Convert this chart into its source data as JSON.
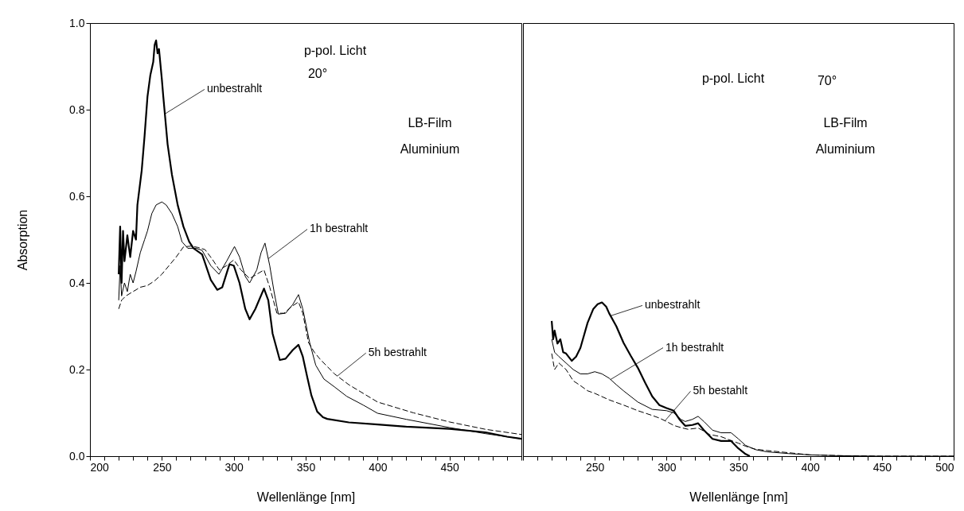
{
  "chart_data": [
    {
      "type": "line",
      "xlabel": "Wellenlänge [nm]",
      "ylabel": "Absorption",
      "xlim": [
        200,
        500
      ],
      "ylim": [
        0,
        1
      ],
      "xticks": [
        200,
        {
          "value": 210,
          "label": null
        },
        {
          "value": 220,
          "label": null
        },
        {
          "value": 230,
          "label": null
        },
        {
          "value": 240,
          "label": null
        },
        250,
        {
          "value": 260,
          "label": null
        },
        {
          "value": 270,
          "label": null
        },
        {
          "value": 280,
          "label": null
        },
        {
          "value": 290,
          "label": null
        },
        300,
        {
          "value": 310,
          "label": null
        },
        {
          "value": 320,
          "label": null
        },
        {
          "value": 330,
          "label": null
        },
        {
          "value": 340,
          "label": null
        },
        350,
        {
          "value": 360,
          "label": null
        },
        {
          "value": 370,
          "label": null
        },
        {
          "value": 380,
          "label": null
        },
        {
          "value": 390,
          "label": null
        },
        400,
        {
          "value": 410,
          "label": null
        },
        {
          "value": 420,
          "label": null
        },
        {
          "value": 430,
          "label": null
        },
        {
          "value": 440,
          "label": null
        },
        450,
        {
          "value": 460,
          "label": null
        },
        {
          "value": 470,
          "label": null
        },
        {
          "value": 480,
          "label": null
        },
        {
          "value": 490,
          "label": null
        },
        {
          "value": 500,
          "label": null
        }
      ],
      "yticks": [
        {
          "value": 0,
          "label": "0.0"
        },
        0.2,
        0.4,
        0.6,
        0.8,
        {
          "value": 1,
          "label": "1.0"
        }
      ],
      "grid": false,
      "legend": false,
      "marker": "none",
      "series": [
        {
          "color": "#000000",
          "line_style": "solid",
          "x": [
            220,
            221,
            222,
            223,
            224,
            226,
            228,
            230,
            232,
            233,
            236,
            238,
            240,
            242,
            244,
            245,
            246,
            247,
            248,
            250,
            251,
            254,
            257,
            261,
            265,
            269,
            272,
            278,
            284,
            288.5,
            292,
            297,
            300,
            304,
            308,
            311,
            315,
            321,
            324,
            327,
            332,
            336,
            341,
            345,
            348,
            351,
            354,
            358,
            362,
            365,
            380,
            400,
            420,
            450,
            475,
            490,
            500
          ],
          "values": [
            0.42,
            0.53,
            0.4,
            0.52,
            0.45,
            0.51,
            0.46,
            0.52,
            0.5,
            0.58,
            0.66,
            0.74,
            0.83,
            0.88,
            0.91,
            0.95,
            0.96,
            0.93,
            0.94,
            0.87,
            0.83,
            0.72,
            0.65,
            0.58,
            0.53,
            0.495,
            0.48,
            0.466,
            0.407,
            0.384,
            0.39,
            0.443,
            0.44,
            0.4,
            0.34,
            0.316,
            0.34,
            0.387,
            0.36,
            0.283,
            0.222,
            0.225,
            0.245,
            0.257,
            0.23,
            0.184,
            0.14,
            0.103,
            0.09,
            0.086,
            0.078,
            0.073,
            0.068,
            0.063,
            0.055,
            0.045,
            0.04
          ]
        },
        {
          "color": "#000000",
          "line_style": "solid",
          "x": [
            220,
            221,
            222,
            224,
            226,
            228,
            230,
            232,
            235,
            238,
            240,
            243,
            246,
            250,
            253,
            257,
            261,
            264,
            268,
            274,
            278,
            284,
            289.7,
            295,
            300.5,
            304,
            308,
            311,
            316,
            319,
            321.7,
            325,
            328,
            331,
            336,
            341,
            345,
            348,
            352.8,
            357,
            362.7,
            370,
            378.6,
            390,
            400,
            420,
            450,
            475,
            500
          ],
          "values": [
            0.36,
            0.44,
            0.37,
            0.4,
            0.38,
            0.42,
            0.4,
            0.426,
            0.47,
            0.5,
            0.52,
            0.56,
            0.58,
            0.587,
            0.58,
            0.56,
            0.53,
            0.495,
            0.48,
            0.48,
            0.475,
            0.44,
            0.42,
            0.45,
            0.484,
            0.46,
            0.415,
            0.4,
            0.43,
            0.47,
            0.492,
            0.44,
            0.38,
            0.328,
            0.33,
            0.35,
            0.373,
            0.34,
            0.262,
            0.21,
            0.178,
            0.16,
            0.138,
            0.118,
            0.099,
            0.085,
            0.066,
            0.052,
            0.04
          ]
        },
        {
          "color": "#000000",
          "line_style": "dashed",
          "x": [
            220,
            222,
            225,
            230,
            235,
            240,
            245,
            250,
            255,
            260,
            265,
            270,
            275,
            280,
            285,
            290,
            295,
            300,
            305,
            311,
            316,
            321,
            325,
            330,
            335,
            340,
            345,
            348,
            352,
            356,
            360,
            370,
            380,
            390,
            400,
            425,
            450,
            475,
            500
          ],
          "values": [
            0.34,
            0.36,
            0.37,
            0.38,
            0.39,
            0.394,
            0.405,
            0.42,
            0.44,
            0.46,
            0.483,
            0.485,
            0.482,
            0.477,
            0.455,
            0.43,
            0.44,
            0.453,
            0.43,
            0.41,
            0.42,
            0.43,
            0.39,
            0.33,
            0.33,
            0.345,
            0.356,
            0.33,
            0.262,
            0.24,
            0.224,
            0.19,
            0.165,
            0.145,
            0.125,
            0.1,
            0.079,
            0.062,
            0.05
          ]
        }
      ],
      "annotations": [
        {
          "text": "unbestrahlt",
          "x": 252,
          "y": 0.79
        },
        {
          "text": "1h bestrahlt",
          "x": 324,
          "y": 0.456
        },
        {
          "text": "5h bestrahlt",
          "x": 372,
          "y": 0.185
        },
        "p-pol. Licht",
        "20°",
        "LB-Film",
        "Aluminium"
      ]
    },
    {
      "type": "line",
      "xlabel": "Wellenlänge [nm]",
      "xlim": [
        200,
        500
      ],
      "ylim": [
        0,
        1
      ],
      "tick_labels": "x",
      "xticks": [
        {
          "value": 200,
          "label": null
        },
        {
          "value": 210,
          "label": null
        },
        {
          "value": 220,
          "label": null
        },
        {
          "value": 230,
          "label": null
        },
        {
          "value": 240,
          "label": null
        },
        250,
        {
          "value": 260,
          "label": null
        },
        {
          "value": 270,
          "label": null
        },
        {
          "value": 280,
          "label": null
        },
        {
          "value": 290,
          "label": null
        },
        300,
        {
          "value": 310,
          "label": null
        },
        {
          "value": 320,
          "label": null
        },
        {
          "value": 330,
          "label": null
        },
        {
          "value": 340,
          "label": null
        },
        350,
        {
          "value": 360,
          "label": null
        },
        {
          "value": 370,
          "label": null
        },
        {
          "value": 380,
          "label": null
        },
        {
          "value": 390,
          "label": null
        },
        400,
        {
          "value": 410,
          "label": null
        },
        {
          "value": 420,
          "label": null
        },
        {
          "value": 430,
          "label": null
        },
        {
          "value": 440,
          "label": null
        },
        450,
        {
          "value": 460,
          "label": null
        },
        {
          "value": 470,
          "label": null
        },
        {
          "value": 480,
          "label": null
        },
        {
          "value": 490,
          "label": null
        },
        500
      ],
      "grid": false,
      "legend": false,
      "marker": "none",
      "series": [
        {
          "color": "#000000",
          "line_style": "solid",
          "x": [
            220,
            221,
            222,
            224,
            226,
            228,
            230,
            234,
            237,
            240,
            245,
            249,
            252,
            255,
            258,
            260,
            265,
            270,
            275,
            280,
            285,
            290,
            295,
            300,
            305,
            309,
            313,
            318,
            322,
            326,
            332,
            338,
            345,
            350,
            355,
            358
          ],
          "values": [
            0.312,
            0.27,
            0.29,
            0.26,
            0.27,
            0.24,
            0.237,
            0.22,
            0.23,
            0.25,
            0.308,
            0.34,
            0.351,
            0.355,
            0.345,
            0.33,
            0.3,
            0.262,
            0.232,
            0.204,
            0.17,
            0.138,
            0.118,
            0.111,
            0.105,
            0.085,
            0.07,
            0.072,
            0.076,
            0.06,
            0.04,
            0.035,
            0.035,
            0.018,
            0.005,
            0.0
          ]
        },
        {
          "color": "#000000",
          "line_style": "solid",
          "x": [
            220,
            222,
            225,
            230,
            235,
            240,
            245,
            250,
            255,
            260,
            265,
            270,
            280,
            290,
            300,
            305,
            310,
            313,
            318,
            322,
            326,
            332,
            338,
            345,
            350,
            355,
            362,
            370,
            385,
            400,
            420,
            450,
            500
          ],
          "values": [
            0.27,
            0.24,
            0.23,
            0.215,
            0.2,
            0.19,
            0.19,
            0.195,
            0.19,
            0.18,
            0.165,
            0.151,
            0.125,
            0.108,
            0.105,
            0.1,
            0.085,
            0.08,
            0.085,
            0.092,
            0.08,
            0.06,
            0.054,
            0.054,
            0.04,
            0.025,
            0.015,
            0.01,
            0.006,
            0.003,
            0.001,
            0.0,
            0.0
          ]
        },
        {
          "color": "#000000",
          "line_style": "dashed",
          "x": [
            220,
            222,
            225,
            230,
            235,
            240,
            245,
            250,
            260,
            270,
            280,
            290,
            295,
            300,
            305,
            310,
            315,
            322,
            326,
            330,
            338,
            345,
            350,
            355,
            362,
            370,
            385,
            400,
            425,
            450,
            500
          ],
          "values": [
            0.237,
            0.2,
            0.215,
            0.2,
            0.174,
            0.163,
            0.151,
            0.145,
            0.13,
            0.118,
            0.105,
            0.094,
            0.088,
            0.08,
            0.071,
            0.066,
            0.062,
            0.065,
            0.058,
            0.05,
            0.045,
            0.036,
            0.03,
            0.023,
            0.016,
            0.013,
            0.008,
            0.003,
            0.001,
            0.0,
            0.0
          ]
        }
      ],
      "annotations": [
        {
          "text": "unbestrahlt",
          "x": 261,
          "y": 0.324
        },
        {
          "text": "1h bestrahlt",
          "x": 261,
          "y": 0.177
        },
        {
          "text": "5h bestahlt",
          "x": 299,
          "y": 0.082
        },
        "p-pol. Licht",
        "70°",
        "LB-Film",
        "Aluminium"
      ]
    }
  ]
}
